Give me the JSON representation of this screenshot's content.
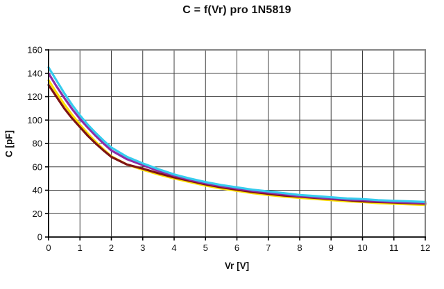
{
  "title": "C = f(Vr) pro 1N5819",
  "chart_data": {
    "type": "line",
    "title": "C = f(Vr) pro 1N5819",
    "xlabel": "Vr [V]",
    "ylabel": "C [pF]",
    "xlim": [
      0,
      12
    ],
    "ylim": [
      0,
      160
    ],
    "x_ticks": [
      0,
      1,
      2,
      3,
      4,
      5,
      6,
      7,
      8,
      9,
      10,
      11,
      12
    ],
    "y_ticks": [
      0,
      20,
      40,
      60,
      80,
      100,
      120,
      140,
      160
    ],
    "grid": true,
    "legend": "none",
    "x": [
      0,
      0.25,
      0.5,
      0.75,
      1,
      1.25,
      1.5,
      1.75,
      2,
      2.5,
      3,
      3.5,
      4,
      4.5,
      5,
      5.5,
      6,
      6.5,
      7,
      7.5,
      8,
      8.5,
      9,
      9.5,
      10,
      10.5,
      11,
      11.5,
      12
    ],
    "series": [
      {
        "name": "curve-yellow",
        "color": "#FFE000",
        "values": [
          134,
          123.5,
          113.5,
          104.5,
          96,
          88.5,
          81.5,
          75,
          69,
          62,
          57.5,
          53.5,
          50,
          47,
          44,
          41.5,
          39.5,
          37.5,
          36,
          34.5,
          33.5,
          32.5,
          31.5,
          30.5,
          30,
          29,
          28.5,
          28,
          27.5
        ]
      },
      {
        "name": "curve-dark-red",
        "color": "#7E1414",
        "values": [
          130,
          120,
          110,
          101.5,
          94,
          86.5,
          80,
          74,
          68.5,
          62,
          58.5,
          54.5,
          51,
          48,
          45,
          42.5,
          40.5,
          38.5,
          37,
          35.5,
          34.5,
          33.5,
          32.5,
          31.5,
          30.5,
          30,
          29.5,
          29,
          28.5
        ]
      },
      {
        "name": "curve-purple",
        "color": "#8E2BA6",
        "values": [
          140,
          129,
          119,
          109.5,
          101,
          93.5,
          86.5,
          80,
          74,
          66.5,
          61.5,
          56.5,
          52.5,
          49,
          46,
          43.5,
          41.5,
          39.5,
          38,
          36.5,
          35,
          34,
          33,
          32,
          31.5,
          30.5,
          30,
          29.5,
          29
        ]
      },
      {
        "name": "curve-cyan",
        "color": "#35CCEE",
        "values": [
          145,
          134,
          123,
          113,
          104,
          96,
          89,
          82.5,
          76.5,
          68.5,
          63,
          58,
          53.5,
          50,
          47,
          44.5,
          42.5,
          40.5,
          39,
          37.5,
          36,
          35,
          34,
          33,
          32.5,
          31.5,
          31,
          30.5,
          30
        ]
      }
    ]
  },
  "colors": {
    "background": "#ffffff",
    "grid": "#3c3c3c",
    "plot_border": "#848484",
    "axis": "#000000",
    "text": "#111111"
  }
}
